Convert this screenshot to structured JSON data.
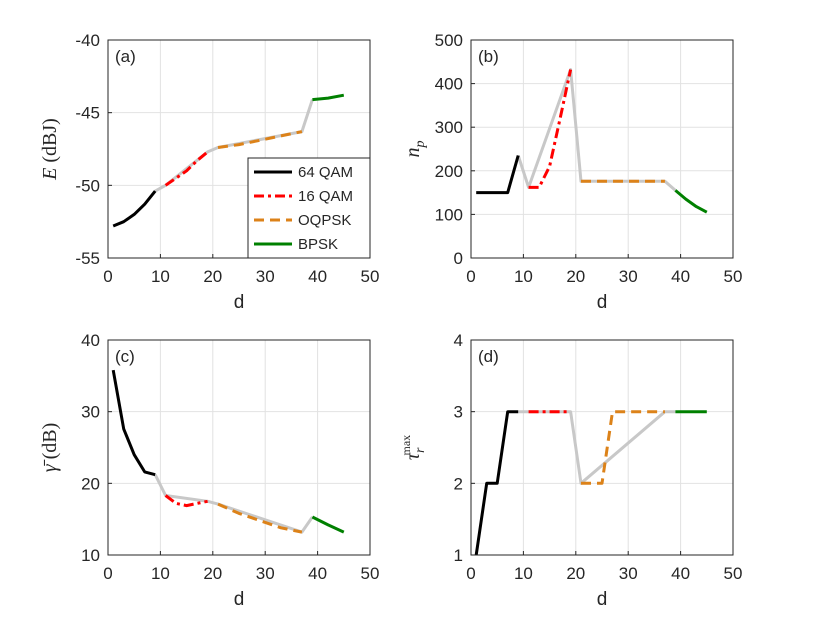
{
  "chart_data": [
    {
      "type": "line",
      "tag": "(a)",
      "xlabel": "d",
      "ylabel": "E (dBJ)",
      "ylabel_parts": {
        "sym": "E",
        "unit": "(dBJ)"
      },
      "xlim": [
        0,
        50
      ],
      "ylim": [
        -55,
        -40
      ],
      "xticks": [
        "0",
        "10",
        "20",
        "30",
        "40",
        "50"
      ],
      "yticks": [
        "-40",
        "-45",
        "-50",
        "-55"
      ],
      "ytick_values": [
        -40,
        -45,
        -50,
        -55
      ],
      "grid": true,
      "series": [
        {
          "name": "transition",
          "color": "#c8c8c8",
          "dash": "",
          "x": [
            9,
            11,
            19,
            21,
            37,
            39
          ],
          "y": [
            -50.4,
            -50.0,
            -47.7,
            -47.4,
            -46.3,
            -44.1
          ]
        },
        {
          "name": "64 QAM",
          "color": "#000000",
          "dash": "",
          "x": [
            1,
            3,
            5,
            7,
            9
          ],
          "y": [
            -52.8,
            -52.5,
            -52.0,
            -51.3,
            -50.4
          ]
        },
        {
          "name": "16 QAM",
          "color": "#ff0000",
          "dash": "10,4,3,4",
          "x": [
            11,
            13,
            15,
            17,
            19
          ],
          "y": [
            -50.0,
            -49.5,
            -49.0,
            -48.3,
            -47.7
          ]
        },
        {
          "name": "OQPSK",
          "color": "#dc8219",
          "dash": "10,6",
          "x": [
            21,
            25,
            29,
            33,
            37
          ],
          "y": [
            -47.4,
            -47.2,
            -46.9,
            -46.6,
            -46.3
          ]
        },
        {
          "name": "BPSK",
          "color": "#008000",
          "dash": "",
          "x": [
            39,
            42,
            45
          ],
          "y": [
            -44.1,
            -44.0,
            -43.8
          ]
        }
      ]
    },
    {
      "type": "line",
      "tag": "(b)",
      "xlabel": "d",
      "ylabel": "n_p",
      "ylabel_parts": {
        "sym": "n",
        "sub": "p"
      },
      "xlim": [
        0,
        50
      ],
      "ylim": [
        0,
        500
      ],
      "xticks": [
        "0",
        "10",
        "20",
        "30",
        "40",
        "50"
      ],
      "yticks": [
        "500",
        "400",
        "300",
        "200",
        "100",
        "0"
      ],
      "ytick_values": [
        500,
        400,
        300,
        200,
        100,
        0
      ],
      "grid": true,
      "series": [
        {
          "name": "transition",
          "color": "#c8c8c8",
          "dash": "",
          "x": [
            9,
            11,
            19,
            21,
            37,
            39
          ],
          "y": [
            235,
            162,
            432,
            176,
            176,
            155
          ]
        },
        {
          "name": "64 QAM",
          "color": "#000000",
          "dash": "",
          "x": [
            1,
            7,
            9
          ],
          "y": [
            150,
            150,
            235
          ]
        },
        {
          "name": "16 QAM",
          "color": "#ff0000",
          "dash": "10,4,3,4",
          "x": [
            11,
            13,
            15,
            17,
            19
          ],
          "y": [
            162,
            162,
            210,
            320,
            432
          ]
        },
        {
          "name": "OQPSK",
          "color": "#dc8219",
          "dash": "10,6",
          "x": [
            21,
            37
          ],
          "y": [
            176,
            176
          ]
        },
        {
          "name": "BPSK",
          "color": "#008000",
          "dash": "",
          "x": [
            39,
            41,
            43,
            45
          ],
          "y": [
            155,
            135,
            118,
            105
          ]
        }
      ]
    },
    {
      "type": "line",
      "tag": "(c)",
      "xlabel": "d",
      "ylabel": "γ̄ (dB)",
      "ylabel_parts": {
        "sym": "γ̄",
        "unit": "(dB)"
      },
      "xlim": [
        0,
        50
      ],
      "ylim": [
        10,
        40
      ],
      "xticks": [
        "0",
        "10",
        "20",
        "30",
        "40",
        "50"
      ],
      "yticks": [
        "40",
        "30",
        "20",
        "10"
      ],
      "ytick_values": [
        40,
        30,
        20,
        10
      ],
      "grid": true,
      "series": [
        {
          "name": "transition",
          "color": "#c8c8c8",
          "dash": "",
          "x": [
            9,
            11,
            19,
            21,
            37,
            39
          ],
          "y": [
            21.2,
            18.3,
            17.5,
            17.1,
            13.2,
            15.3
          ]
        },
        {
          "name": "64 QAM",
          "color": "#000000",
          "dash": "",
          "x": [
            1,
            3,
            5,
            7,
            9
          ],
          "y": [
            35.8,
            27.6,
            24.0,
            21.6,
            21.2
          ]
        },
        {
          "name": "16 QAM",
          "color": "#ff0000",
          "dash": "10,4,3,4",
          "x": [
            11,
            13,
            15,
            17,
            19
          ],
          "y": [
            18.3,
            17.2,
            16.9,
            17.2,
            17.5
          ]
        },
        {
          "name": "OQPSK",
          "color": "#dc8219",
          "dash": "10,6",
          "x": [
            21,
            25,
            29,
            33,
            37
          ],
          "y": [
            17.1,
            15.8,
            14.8,
            13.8,
            13.2
          ]
        },
        {
          "name": "BPSK",
          "color": "#008000",
          "dash": "",
          "x": [
            39,
            42,
            45
          ],
          "y": [
            15.3,
            14.2,
            13.2
          ]
        }
      ]
    },
    {
      "type": "line",
      "tag": "(d)",
      "xlabel": "d",
      "ylabel": "τ_r^max",
      "ylabel_parts": {
        "sym": "τ",
        "sub": "r",
        "sup": "max"
      },
      "xlim": [
        0,
        50
      ],
      "ylim": [
        1,
        4
      ],
      "xticks": [
        "0",
        "10",
        "20",
        "30",
        "40",
        "50"
      ],
      "yticks": [
        "4",
        "3",
        "2",
        "1"
      ],
      "ytick_values": [
        4,
        3,
        2,
        1
      ],
      "grid": true,
      "series": [
        {
          "name": "transition",
          "color": "#c8c8c8",
          "dash": "",
          "x": [
            9,
            11,
            19,
            21,
            37,
            39
          ],
          "y": [
            3,
            3,
            3,
            2,
            3,
            3
          ]
        },
        {
          "name": "64 QAM",
          "color": "#000000",
          "dash": "",
          "x": [
            1,
            3,
            5,
            7,
            9
          ],
          "y": [
            1,
            2,
            2,
            3,
            3
          ]
        },
        {
          "name": "16 QAM",
          "color": "#ff0000",
          "dash": "10,4,3,4",
          "x": [
            11,
            19
          ],
          "y": [
            3,
            3
          ]
        },
        {
          "name": "OQPSK",
          "color": "#dc8219",
          "dash": "10,6",
          "x": [
            21,
            25,
            27,
            37
          ],
          "y": [
            2,
            2,
            3,
            3
          ]
        },
        {
          "name": "BPSK",
          "color": "#008000",
          "dash": "",
          "x": [
            39,
            45
          ],
          "y": [
            3,
            3
          ]
        }
      ]
    }
  ],
  "legend": [
    {
      "label": "64 QAM",
      "color": "#000000",
      "dash": ""
    },
    {
      "label": "16 QAM",
      "color": "#ff0000",
      "dash": "10,4,3,4"
    },
    {
      "label": "OQPSK",
      "color": "#dc8219",
      "dash": "10,6"
    },
    {
      "label": "BPSK",
      "color": "#008000",
      "dash": ""
    }
  ]
}
